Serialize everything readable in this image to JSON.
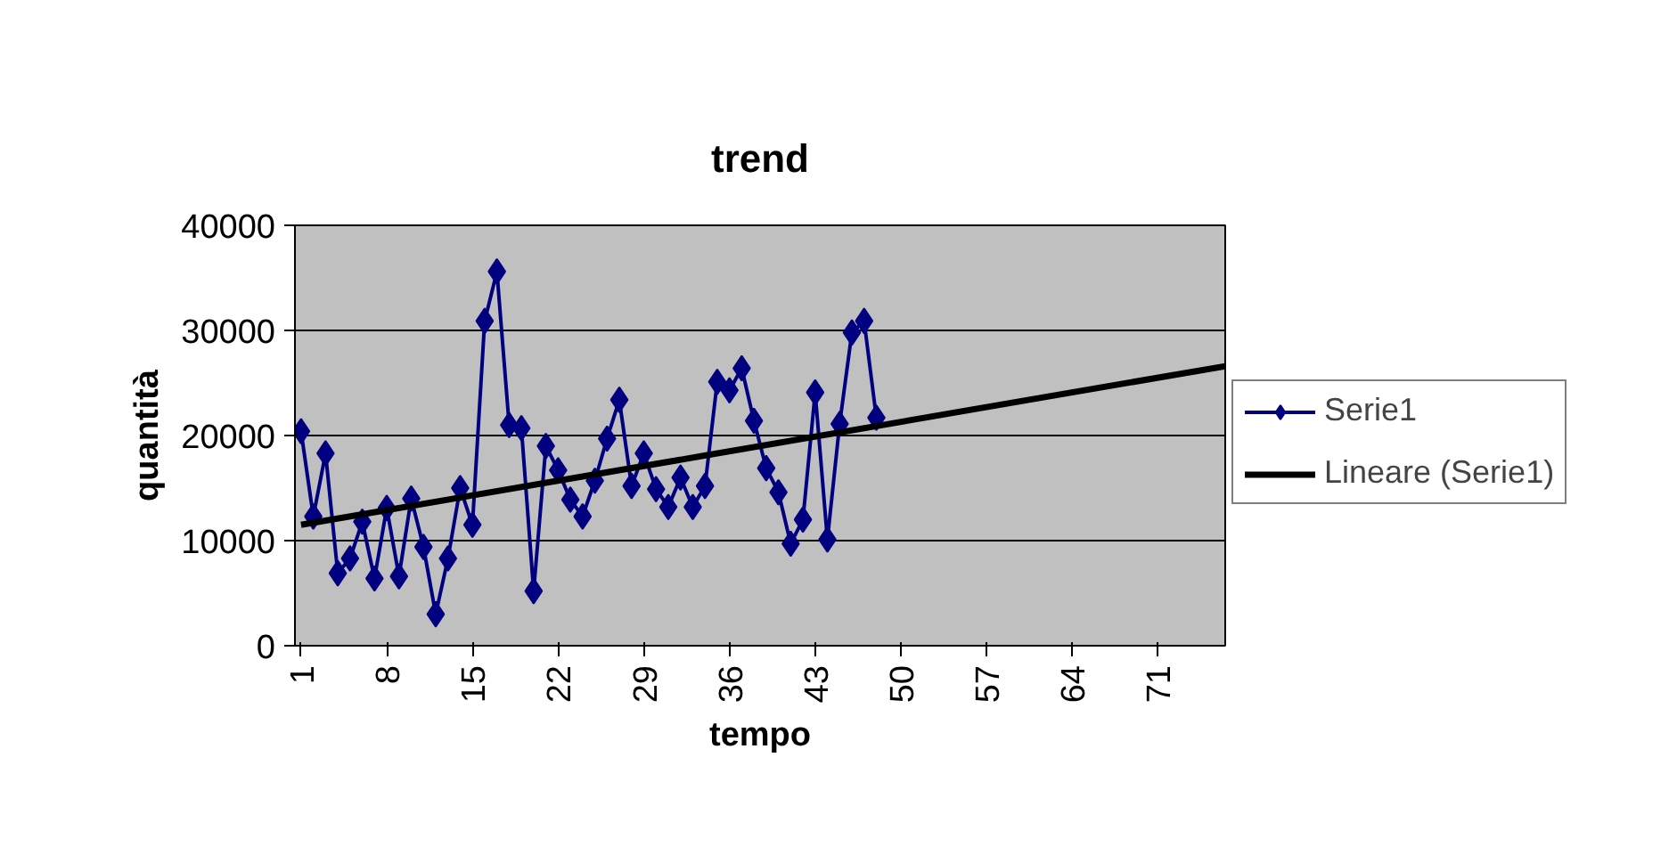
{
  "chart_data": {
    "type": "line",
    "title": "trend",
    "xlabel": "tempo",
    "ylabel": "quantità",
    "x": [
      1,
      2,
      3,
      4,
      5,
      6,
      7,
      8,
      9,
      10,
      11,
      12,
      13,
      14,
      15,
      16,
      17,
      18,
      19,
      20,
      21,
      22,
      23,
      24,
      25,
      26,
      27,
      28,
      29,
      30,
      31,
      32,
      33,
      34,
      35,
      36,
      37,
      38,
      39,
      40,
      41,
      42,
      43,
      44,
      45,
      46,
      47,
      48
    ],
    "xlim": [
      0.5,
      76.5
    ],
    "xticks": [
      1,
      8,
      15,
      22,
      29,
      36,
      43,
      50,
      57,
      64,
      71
    ],
    "ylim": [
      0,
      40000
    ],
    "yticks": [
      0,
      10000,
      20000,
      30000,
      40000
    ],
    "grid": "y",
    "legend": "right",
    "marker": "diamond",
    "series": [
      {
        "name": "Serie1",
        "color": "#000080",
        "values": [
          20400,
          12300,
          18300,
          6900,
          8300,
          11800,
          6400,
          13100,
          6600,
          14000,
          9400,
          3000,
          8300,
          15000,
          11500,
          30900,
          35600,
          21000,
          20700,
          5200,
          19000,
          16700,
          13900,
          12300,
          15700,
          19700,
          23400,
          15200,
          18300,
          14900,
          13200,
          16000,
          13200,
          15200,
          25100,
          24300,
          26400,
          21400,
          16900,
          14600,
          9700,
          12000,
          24100,
          10100,
          21100,
          29800,
          30900,
          21700
        ]
      },
      {
        "name": "Lineare (Serie1)",
        "color": "#000000",
        "type": "line",
        "marker": "none",
        "x": [
          1,
          76.5
        ],
        "values": [
          11500,
          26600
        ]
      }
    ]
  }
}
